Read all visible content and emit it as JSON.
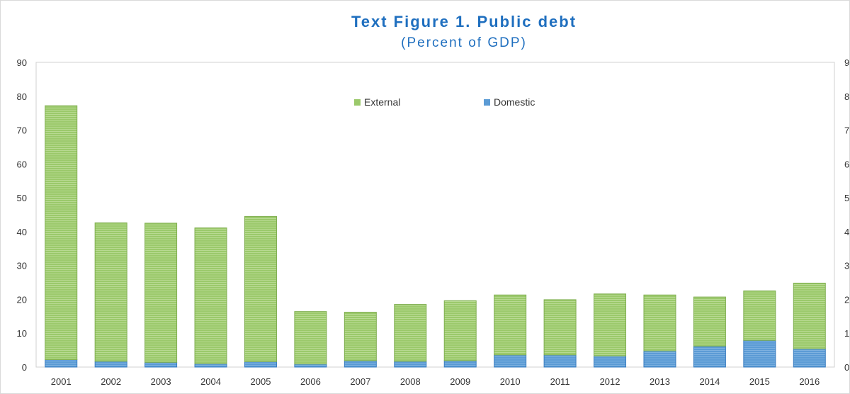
{
  "chart_data": {
    "type": "bar",
    "stacked": true,
    "title": "Text Figure 1. Public debt",
    "subtitle": "(Percent of GDP)",
    "categories": [
      "2001",
      "2002",
      "2003",
      "2004",
      "2005",
      "2006",
      "2007",
      "2008",
      "2009",
      "2010",
      "2011",
      "2012",
      "2013",
      "2014",
      "2015",
      "2016"
    ],
    "series": [
      {
        "name": "Domestic",
        "color": "#5b9bd5",
        "values": [
          2.2,
          1.7,
          1.4,
          1.0,
          1.6,
          0.9,
          1.9,
          1.7,
          1.9,
          3.6,
          3.6,
          3.3,
          4.8,
          6.2,
          7.9,
          5.4
        ]
      },
      {
        "name": "External",
        "color": "#9bc96b",
        "values": [
          75.0,
          40.9,
          41.1,
          40.1,
          42.9,
          15.5,
          14.3,
          16.8,
          17.7,
          17.7,
          16.3,
          18.3,
          16.5,
          14.5,
          14.6,
          19.4
        ]
      }
    ],
    "ylim": [
      0,
      90
    ],
    "yticks": [
      0,
      10,
      20,
      30,
      40,
      50,
      60,
      70,
      80,
      90
    ],
    "right_axis_ticks": [
      "0",
      "1",
      "2",
      "3",
      "4",
      "5",
      "6",
      "7",
      "8",
      "9"
    ],
    "grid": false,
    "legend": [
      {
        "name": "External",
        "color": "#9bc96b"
      },
      {
        "name": "Domestic",
        "color": "#5b9bd5"
      }
    ],
    "legend_position": "top-center"
  }
}
